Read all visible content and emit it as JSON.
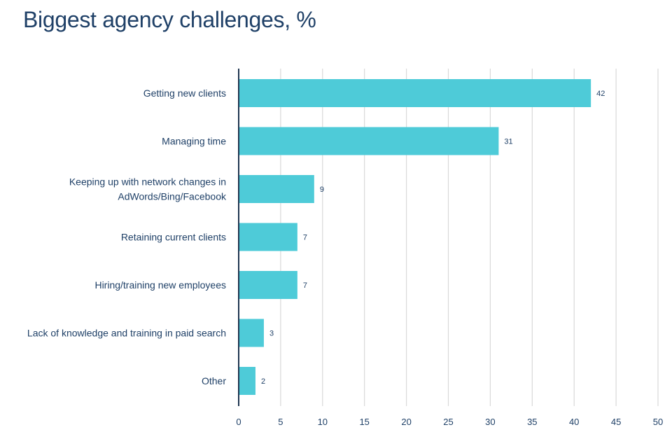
{
  "colors": {
    "bar": "#4ecbd8",
    "text": "#1f4067",
    "grid": "#d9d9d9",
    "axis": "#1f3550"
  },
  "chart_data": {
    "type": "bar",
    "orientation": "horizontal",
    "title": "Biggest agency challenges, %",
    "categories": [
      [
        "Getting new clients"
      ],
      [
        "Managing time"
      ],
      [
        "Keeping up with network changes in",
        "AdWords/Bing/Facebook"
      ],
      [
        "Retaining current clients"
      ],
      [
        "Hiring/training new employees"
      ],
      [
        "Lack of knowledge and training in paid search"
      ],
      [
        "Other"
      ]
    ],
    "values": [
      42,
      31,
      9,
      7,
      7,
      3,
      2
    ],
    "xlim": [
      0,
      50
    ],
    "xticks": [
      0,
      5,
      10,
      15,
      20,
      25,
      30,
      35,
      40,
      45,
      50
    ],
    "grid": true,
    "data_labels": true,
    "xlabel": "",
    "ylabel": ""
  }
}
